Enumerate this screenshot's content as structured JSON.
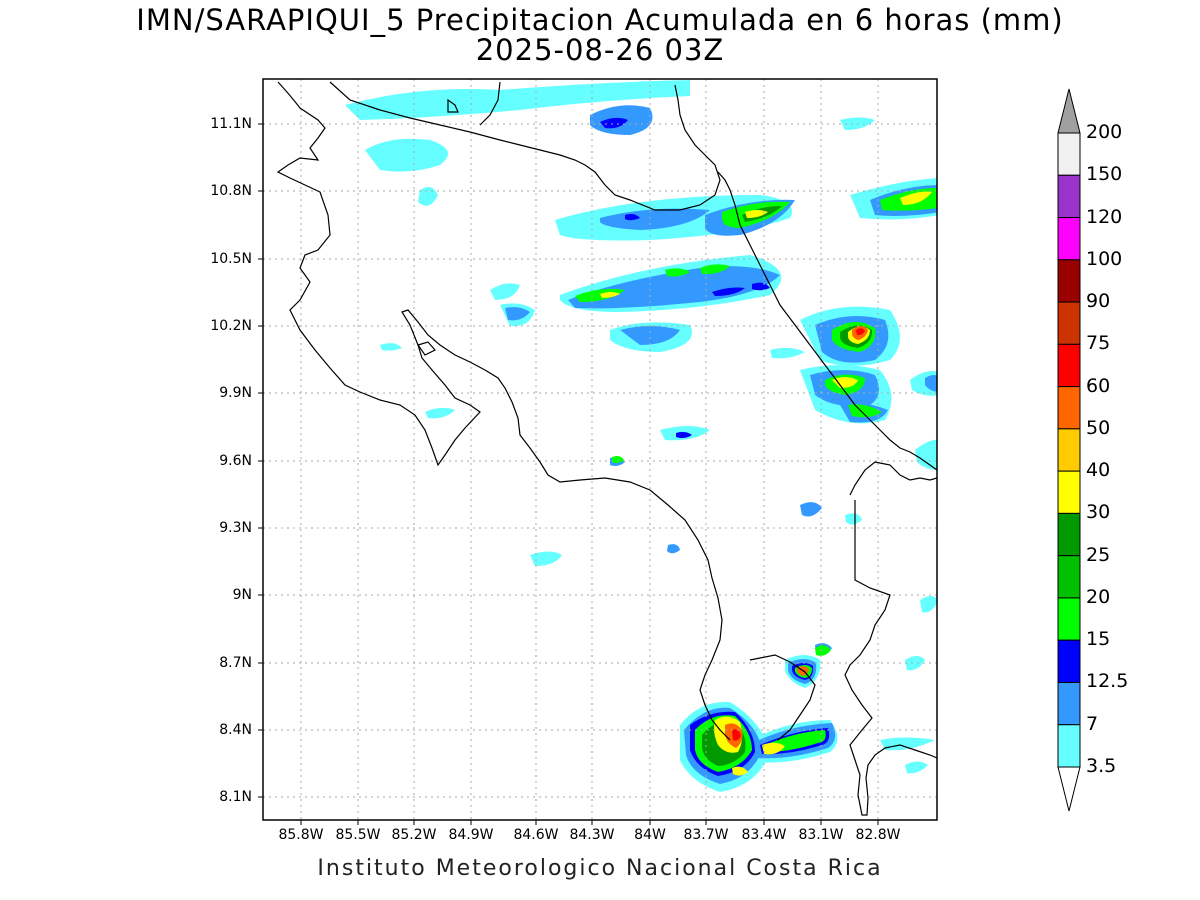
{
  "title_line1": "IMN/SARAPIQUI_5 Precipitacion Acumulada en 6 horas (mm)",
  "title_line2": "2025-08-26 03Z",
  "footer": "Instituto Meteorologico Nacional Costa Rica",
  "lat_labels": [
    "11.1N",
    "10.8N",
    "10.5N",
    "10.2N",
    "9.9N",
    "9.6N",
    "9.3N",
    "9N",
    "8.7N",
    "8.4N",
    "8.1N"
  ],
  "lon_labels": [
    "85.8W",
    "85.5W",
    "85.2W",
    "84.9W",
    "84.6W",
    "84.3W",
    "84W",
    "83.7W",
    "83.4W",
    "83.1W",
    "82.8W"
  ],
  "colorbar": {
    "labels": [
      "200",
      "150",
      "120",
      "100",
      "90",
      "75",
      "60",
      "50",
      "40",
      "30",
      "25",
      "20",
      "15",
      "12.5",
      "7",
      "3.5"
    ],
    "colors": [
      "#f0f0f0",
      "#9933cc",
      "#ff00ff",
      "#990000",
      "#cc3300",
      "#ff0000",
      "#ff6600",
      "#ffcc00",
      "#ffff00",
      "#009900",
      "#00c000",
      "#00ff00",
      "#0000ff",
      "#3399ff",
      "#66ffff"
    ],
    "over_color": "#a0a0a0",
    "under_color": "#ffffff"
  }
}
